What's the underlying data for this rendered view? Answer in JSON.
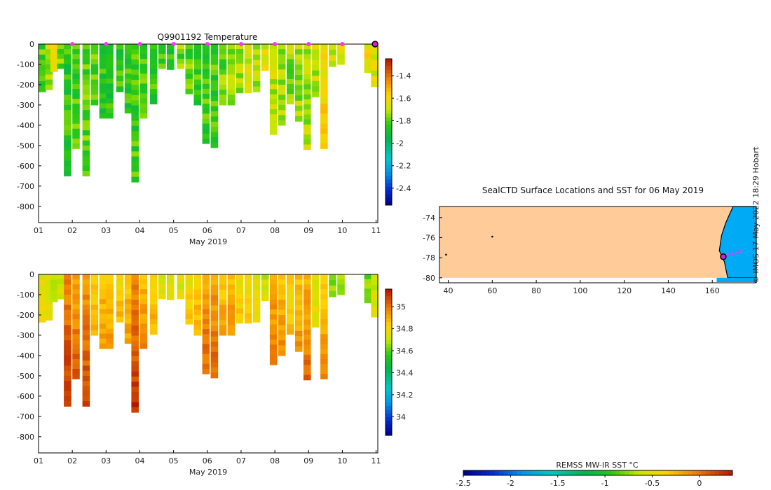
{
  "chart_data": [
    {
      "type": "heatmap",
      "title": "Q9901192  Temperature",
      "xlabel": "May 2019",
      "x_ticks": [
        "01",
        "02",
        "03",
        "04",
        "05",
        "06",
        "07",
        "08",
        "09",
        "10",
        "11"
      ],
      "xlim": [
        1,
        11.05
      ],
      "ylim": [
        -880,
        0
      ],
      "y_ticks": [
        "0",
        "-100",
        "-200",
        "-300",
        "-400",
        "-500",
        "-600",
        "-700",
        "-800"
      ],
      "colorbar": {
        "ticks": [
          "-1.4",
          "-1.6",
          "-1.8",
          "-2",
          "-2.2",
          "-2.4"
        ],
        "range": [
          -2.55,
          -1.25
        ]
      },
      "profile_markers_day": [
        2,
        3,
        4,
        5,
        6,
        7,
        8,
        9,
        10
      ],
      "profiles": [
        {
          "t": 1.1,
          "depth": 235,
          "value": -1.8
        },
        {
          "t": 1.3,
          "depth": 225,
          "value": -1.72
        },
        {
          "t": 1.45,
          "depth": 135,
          "value": -1.55
        },
        {
          "t": 1.65,
          "depth": 120,
          "value": -1.78
        },
        {
          "t": 1.85,
          "depth": 650,
          "value": -1.85
        },
        {
          "t": 2.1,
          "depth": 515,
          "value": -1.82
        },
        {
          "t": 2.4,
          "depth": 650,
          "value": -1.8
        },
        {
          "t": 2.65,
          "depth": 300,
          "value": -1.78
        },
        {
          "t": 2.9,
          "depth": 365,
          "value": -1.85
        },
        {
          "t": 3.1,
          "depth": 365,
          "value": -1.85
        },
        {
          "t": 3.4,
          "depth": 235,
          "value": -1.85
        },
        {
          "t": 3.65,
          "depth": 340,
          "value": -1.84
        },
        {
          "t": 3.85,
          "depth": 680,
          "value": -1.83
        },
        {
          "t": 4.1,
          "depth": 365,
          "value": -1.82
        },
        {
          "t": 4.4,
          "depth": 295,
          "value": -1.83
        },
        {
          "t": 4.65,
          "depth": 120,
          "value": -1.8
        },
        {
          "t": 4.9,
          "depth": 125,
          "value": -1.85
        },
        {
          "t": 5.2,
          "depth": 120,
          "value": -1.78
        },
        {
          "t": 5.45,
          "depth": 245,
          "value": -1.8
        },
        {
          "t": 5.7,
          "depth": 300,
          "value": -1.82
        },
        {
          "t": 5.95,
          "depth": 490,
          "value": -1.82
        },
        {
          "t": 6.2,
          "depth": 510,
          "value": -1.82
        },
        {
          "t": 6.45,
          "depth": 300,
          "value": -1.78
        },
        {
          "t": 6.7,
          "depth": 300,
          "value": -1.75
        },
        {
          "t": 6.95,
          "depth": 240,
          "value": -1.72
        },
        {
          "t": 7.2,
          "depth": 240,
          "value": -1.7
        },
        {
          "t": 7.45,
          "depth": 235,
          "value": -1.72
        },
        {
          "t": 7.7,
          "depth": 130,
          "value": -1.65
        },
        {
          "t": 7.95,
          "depth": 445,
          "value": -1.7
        },
        {
          "t": 8.2,
          "depth": 400,
          "value": -1.72
        },
        {
          "t": 8.45,
          "depth": 295,
          "value": -1.75
        },
        {
          "t": 8.7,
          "depth": 380,
          "value": -1.74
        },
        {
          "t": 8.95,
          "depth": 520,
          "value": -1.72
        },
        {
          "t": 9.2,
          "depth": 260,
          "value": -1.7
        },
        {
          "t": 9.45,
          "depth": 515,
          "value": -1.6
        },
        {
          "t": 9.7,
          "depth": 110,
          "value": -1.7
        },
        {
          "t": 9.95,
          "depth": 100,
          "value": -1.65
        },
        {
          "t": 10.75,
          "depth": 140,
          "value": -1.62
        },
        {
          "t": 10.95,
          "depth": 210,
          "value": -1.65
        }
      ]
    },
    {
      "type": "heatmap",
      "title": "",
      "xlabel": "May 2019",
      "x_ticks": [
        "01",
        "02",
        "03",
        "04",
        "05",
        "06",
        "07",
        "08",
        "09",
        "10",
        "11"
      ],
      "xlim": [
        1,
        11.05
      ],
      "ylim": [
        -880,
        0
      ],
      "y_ticks": [
        "0",
        "-100",
        "-200",
        "-300",
        "-400",
        "-500",
        "-600",
        "-700",
        "-800"
      ],
      "colorbar": {
        "ticks": [
          "35",
          "34.8",
          "34.6",
          "34.4",
          "34.2",
          "34"
        ],
        "range": [
          33.83,
          35.16
        ]
      },
      "profiles": [
        {
          "t": 1.1,
          "depth": 235,
          "value": 34.75
        },
        {
          "t": 1.3,
          "depth": 225,
          "value": 34.72
        },
        {
          "t": 1.45,
          "depth": 135,
          "value": 34.7
        },
        {
          "t": 1.65,
          "depth": 120,
          "value": 34.7
        },
        {
          "t": 1.85,
          "depth": 650,
          "value": 34.95
        },
        {
          "t": 2.1,
          "depth": 515,
          "value": 34.9
        },
        {
          "t": 2.4,
          "depth": 650,
          "value": 34.92
        },
        {
          "t": 2.65,
          "depth": 300,
          "value": 34.82
        },
        {
          "t": 2.9,
          "depth": 365,
          "value": 34.84
        },
        {
          "t": 3.1,
          "depth": 365,
          "value": 34.84
        },
        {
          "t": 3.4,
          "depth": 235,
          "value": 34.8
        },
        {
          "t": 3.65,
          "depth": 340,
          "value": 34.84
        },
        {
          "t": 3.85,
          "depth": 680,
          "value": 34.94
        },
        {
          "t": 4.1,
          "depth": 365,
          "value": 34.86
        },
        {
          "t": 4.4,
          "depth": 295,
          "value": 34.82
        },
        {
          "t": 4.65,
          "depth": 120,
          "value": 34.74
        },
        {
          "t": 4.9,
          "depth": 125,
          "value": 34.74
        },
        {
          "t": 5.2,
          "depth": 120,
          "value": 34.72
        },
        {
          "t": 5.45,
          "depth": 245,
          "value": 34.78
        },
        {
          "t": 5.7,
          "depth": 300,
          "value": 34.82
        },
        {
          "t": 5.95,
          "depth": 490,
          "value": 34.9
        },
        {
          "t": 6.2,
          "depth": 510,
          "value": 34.9
        },
        {
          "t": 6.45,
          "depth": 300,
          "value": 34.84
        },
        {
          "t": 6.7,
          "depth": 300,
          "value": 34.86
        },
        {
          "t": 6.95,
          "depth": 240,
          "value": 34.78
        },
        {
          "t": 7.2,
          "depth": 240,
          "value": 34.76
        },
        {
          "t": 7.45,
          "depth": 235,
          "value": 34.74
        },
        {
          "t": 7.7,
          "depth": 130,
          "value": 34.7
        },
        {
          "t": 7.95,
          "depth": 445,
          "value": 34.88
        },
        {
          "t": 8.2,
          "depth": 400,
          "value": 34.86
        },
        {
          "t": 8.45,
          "depth": 295,
          "value": 34.8
        },
        {
          "t": 8.7,
          "depth": 380,
          "value": 34.84
        },
        {
          "t": 8.95,
          "depth": 520,
          "value": 34.88
        },
        {
          "t": 9.2,
          "depth": 260,
          "value": 34.72
        },
        {
          "t": 9.45,
          "depth": 515,
          "value": 34.82
        },
        {
          "t": 9.7,
          "depth": 110,
          "value": 34.62
        },
        {
          "t": 9.95,
          "depth": 100,
          "value": 34.65
        },
        {
          "t": 10.75,
          "depth": 140,
          "value": 34.62
        },
        {
          "t": 10.95,
          "depth": 210,
          "value": 34.7
        }
      ]
    },
    {
      "type": "map",
      "title": "SealCTD Surface Locations and SST for 06 May 2019",
      "x_ticks": [
        "40",
        "60",
        "80",
        "100",
        "120",
        "140",
        "160"
      ],
      "y_ticks": [
        "-74",
        "-76",
        "-78",
        "-80"
      ],
      "xlim": [
        36,
        180
      ],
      "ylim": [
        -80.5,
        -72.9
      ],
      "land_lon_lat_range": {
        "lon": [
          36,
          180
        ],
        "lat": [
          -80,
          -72.9
        ]
      },
      "ocean_region_lon": [
        163,
        180
      ],
      "surface_points": [
        {
          "lon": 60,
          "lat": -75.9
        },
        {
          "lon": 39,
          "lat": -77.7
        },
        {
          "lon": 167,
          "lat": -77.6
        },
        {
          "lon": 169,
          "lat": -77.6
        },
        {
          "lon": 171,
          "lat": -77.5
        },
        {
          "lon": 173,
          "lat": -77.4
        }
      ],
      "latest_location": {
        "lon": 165,
        "lat": -77.9
      },
      "colorbar": {
        "label": "REMSS MW-IR SST °C",
        "ticks": [
          "-2.5",
          "-2",
          "-1.5",
          "-1",
          "-0.5",
          "0"
        ],
        "range": [
          -2.5,
          0.35
        ]
      }
    }
  ],
  "credit": "© IMOS 17-May-2022 18:29 Hobart"
}
